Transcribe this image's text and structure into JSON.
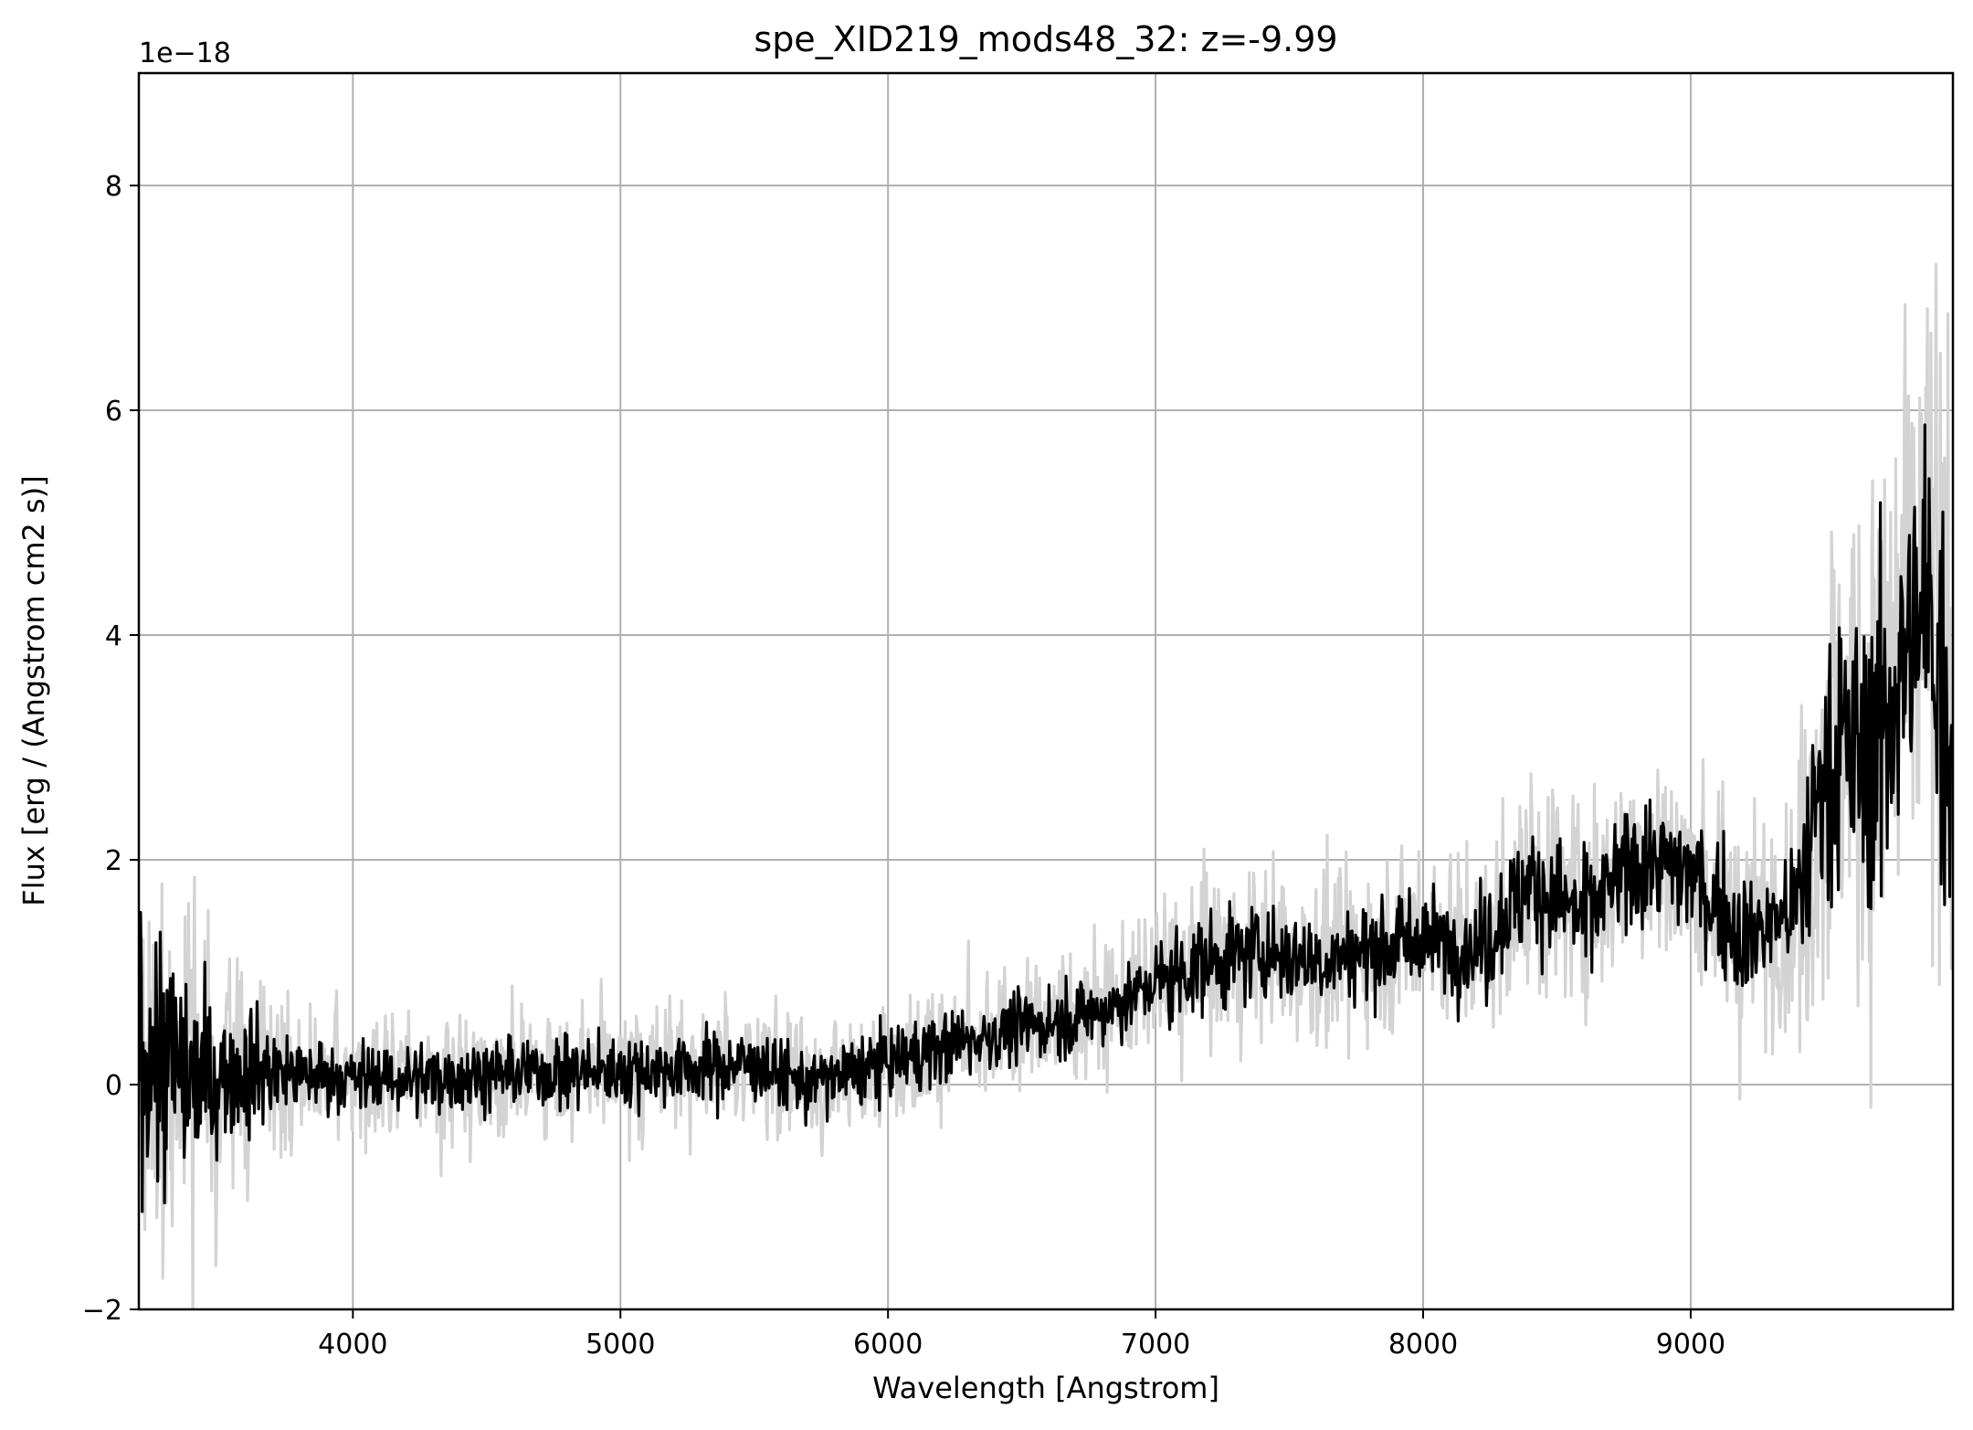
{
  "chart_data": {
    "type": "line",
    "title": "spe_XID219_mods48_32: z=-9.99",
    "xlabel": "Wavelength [Angstrom]",
    "ylabel": "Flux [erg / (Angstrom cm2 s)]",
    "y_offset_label": "1e−18",
    "xlim": [
      3200,
      9980
    ],
    "ylim": [
      -2,
      9
    ],
    "xticks": [
      4000,
      5000,
      6000,
      7000,
      8000,
      9000
    ],
    "xtick_labels": [
      "4000",
      "5000",
      "6000",
      "7000",
      "8000",
      "9000"
    ],
    "yticks": [
      -2,
      0,
      2,
      4,
      6,
      8
    ],
    "ytick_labels": [
      "−2",
      "0",
      "2",
      "4",
      "6",
      "8"
    ],
    "grid": true,
    "series_colors": {
      "flux": "#000000",
      "noisy": "#d3d3d3"
    },
    "series": [
      {
        "values_approx": [
          [
            3200,
            0.5
          ],
          [
            3400,
            0.0
          ],
          [
            3600,
            0.2
          ],
          [
            3800,
            0.1
          ],
          [
            4000,
            0.05
          ],
          [
            4200,
            0.05
          ],
          [
            4500,
            0.1
          ],
          [
            5000,
            0.15
          ],
          [
            5500,
            0.2
          ],
          [
            5700,
            0.0
          ],
          [
            6000,
            0.2
          ],
          [
            6300,
            0.4
          ],
          [
            6500,
            0.5
          ],
          [
            6800,
            0.7
          ],
          [
            7000,
            0.9
          ],
          [
            7200,
            1.1
          ],
          [
            7400,
            1.2
          ],
          [
            7600,
            1.1
          ],
          [
            7800,
            1.2
          ],
          [
            8000,
            1.4
          ],
          [
            8200,
            1.2
          ],
          [
            8400,
            1.8
          ],
          [
            8600,
            1.6
          ],
          [
            8800,
            2.1
          ],
          [
            9000,
            1.9
          ],
          [
            9200,
            1.3
          ],
          [
            9400,
            1.6
          ],
          [
            9500,
            3.0
          ],
          [
            9700,
            3.2
          ],
          [
            9800,
            4.0
          ],
          [
            9900,
            4.6
          ],
          [
            9980,
            3.0
          ]
        ]
      },
      {
        "values_approx": [
          [
            3200,
            0.4
          ],
          [
            3400,
            0.0
          ],
          [
            3600,
            0.15
          ],
          [
            3800,
            0.1
          ],
          [
            4000,
            0.05
          ],
          [
            4200,
            0.05
          ],
          [
            4500,
            0.1
          ],
          [
            5000,
            0.12
          ],
          [
            5500,
            0.18
          ],
          [
            5700,
            0.0
          ],
          [
            6000,
            0.2
          ],
          [
            6300,
            0.4
          ],
          [
            6500,
            0.5
          ],
          [
            6800,
            0.65
          ],
          [
            7000,
            0.9
          ],
          [
            7200,
            1.1
          ],
          [
            7400,
            1.2
          ],
          [
            7600,
            1.1
          ],
          [
            7800,
            1.2
          ],
          [
            8000,
            1.3
          ],
          [
            8200,
            1.2
          ],
          [
            8400,
            1.8
          ],
          [
            8600,
            1.5
          ],
          [
            8800,
            2.0
          ],
          [
            9000,
            1.9
          ],
          [
            9200,
            1.3
          ],
          [
            9400,
            1.6
          ],
          [
            9500,
            2.9
          ],
          [
            9700,
            3.0
          ],
          [
            9800,
            3.8
          ],
          [
            9900,
            4.2
          ],
          [
            9980,
            3.0
          ]
        ]
      }
    ]
  }
}
